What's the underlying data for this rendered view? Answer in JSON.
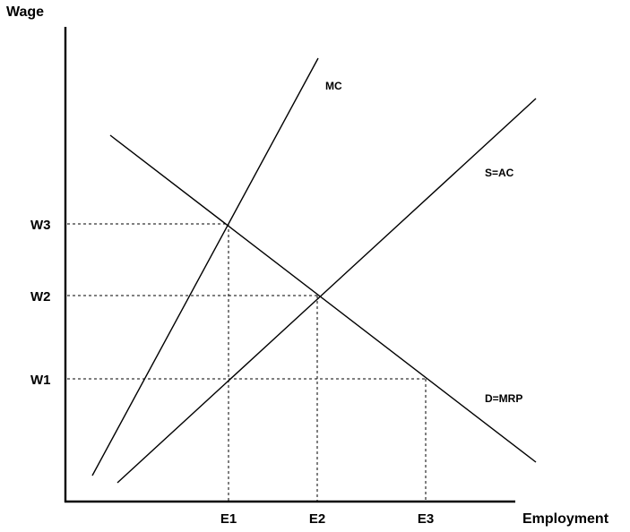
{
  "axes": {
    "y_title": "Wage",
    "x_title": "Employment"
  },
  "wage_levels": [
    "W3",
    "W2",
    "W1"
  ],
  "employment_levels": [
    "E1",
    "E2",
    "E3"
  ],
  "curves": {
    "mc": "MC",
    "supply": "S=AC",
    "demand": "D=MRP"
  },
  "colors": {
    "lines": "#000000",
    "background": "#ffffff"
  }
}
